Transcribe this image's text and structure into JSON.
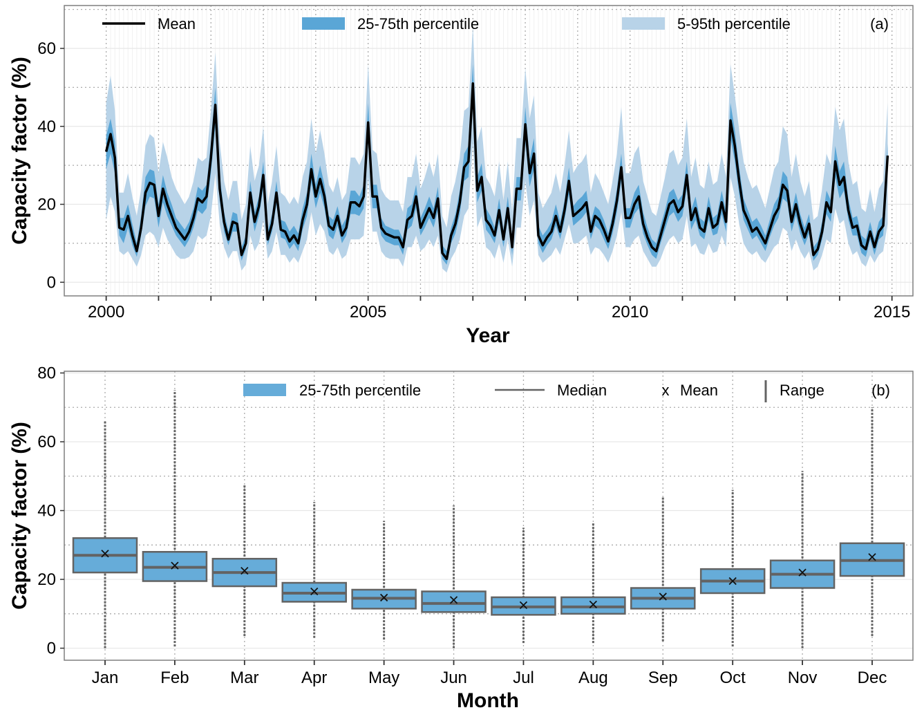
{
  "chart_data": [
    {
      "type": "line",
      "panel_label": "(a)",
      "xlabel": "Year",
      "ylabel": "Capacity factor (%)",
      "xlim": [
        1999.2,
        2015.4
      ],
      "ylim": [
        -3.5,
        71
      ],
      "x_ticks": [
        2000,
        2005,
        2010,
        2015
      ],
      "y_ticks": [
        0,
        20,
        40,
        60
      ],
      "grid": true,
      "legend_position": "top",
      "legend": {
        "mean": "Mean",
        "iqr": "25-75th percentile",
        "p5_95": "5-95th percentile"
      },
      "colors": {
        "mean": "#000000",
        "iqr": "#5aa6d6",
        "p5_95": "#b8d3e8"
      },
      "x_start": 2000.0,
      "x_step_months": 1,
      "series": [
        {
          "name": "Mean",
          "values": [
            33.5,
            38,
            32,
            14,
            13.5,
            17,
            12,
            8,
            14,
            23,
            25.5,
            25,
            17,
            24,
            20,
            17,
            14,
            12.5,
            11,
            13,
            16.5,
            21.5,
            20.5,
            22,
            32,
            45.5,
            24,
            15.5,
            11,
            15.5,
            15,
            7,
            10,
            23,
            15.5,
            19.5,
            27.5,
            11,
            15,
            23,
            13.5,
            13,
            10.5,
            12,
            10,
            16,
            20,
            29,
            22,
            26.5,
            22,
            14.5,
            13.5,
            17,
            12,
            14,
            20.5,
            20.5,
            19.5,
            22,
            41,
            22,
            22,
            14,
            12.5,
            12,
            11.5,
            11.5,
            9,
            16,
            17,
            22,
            14,
            16.5,
            19,
            16.5,
            21.5,
            7.5,
            6,
            12,
            15,
            20.5,
            29.5,
            31,
            51,
            23.5,
            27,
            16,
            14.5,
            12,
            18.5,
            11,
            19,
            9,
            24,
            24,
            40.5,
            28,
            33,
            12,
            9.5,
            11.5,
            13,
            17,
            13,
            18.5,
            26,
            17,
            18,
            19,
            20.5,
            13,
            17,
            16,
            13.5,
            10.5,
            15,
            21,
            29.5,
            16.5,
            16.5,
            20,
            22,
            15,
            11.5,
            9,
            8,
            12,
            16,
            20,
            21,
            18,
            19.5,
            27.5,
            16,
            19,
            14,
            13,
            19,
            14,
            15,
            20.5,
            15.5,
            41.5,
            35,
            26,
            18.5,
            16,
            13,
            14,
            12,
            10,
            13.5,
            17,
            19,
            25,
            23.5,
            15.5,
            20,
            15,
            11.5,
            15,
            7,
            8.5,
            13,
            20.5,
            18,
            31,
            25,
            27,
            18.5,
            14,
            14.5,
            9.5,
            8.5,
            13,
            9,
            13,
            14.5,
            32.5
          ]
        },
        {
          "name": "25-75th percentile",
          "low": [
            29,
            33,
            28,
            12,
            10,
            14,
            9.5,
            6.5,
            12,
            19.5,
            22,
            21.5,
            14,
            20.5,
            17,
            14.5,
            12,
            10.5,
            9,
            11,
            14,
            18.5,
            17.5,
            19,
            28,
            40,
            21,
            13,
            9.5,
            13,
            13,
            5.5,
            8.5,
            20,
            13,
            17,
            24,
            9.5,
            13,
            20,
            11.5,
            11,
            8.5,
            10,
            8,
            13.5,
            17,
            25.5,
            19,
            23,
            19,
            12,
            11,
            14.5,
            10,
            12,
            17.5,
            17.5,
            17,
            19,
            36,
            19,
            19,
            12,
            10.5,
            10,
            9.5,
            9.5,
            7,
            13.5,
            14.5,
            19,
            12,
            14,
            16.5,
            14,
            18.5,
            6,
            4.5,
            10,
            12.5,
            17.5,
            26,
            27,
            46,
            20.5,
            23.5,
            13.5,
            12,
            10,
            15.5,
            9,
            16,
            7,
            21,
            21,
            36,
            24.5,
            29,
            10,
            7.5,
            9.5,
            11,
            14.5,
            11,
            16,
            22.5,
            14.5,
            15.5,
            16.5,
            18,
            11,
            14.5,
            13.5,
            11,
            8.5,
            12.5,
            18,
            26,
            14,
            14,
            17.5,
            19,
            12.5,
            9.5,
            7,
            6,
            10,
            13.5,
            17,
            18,
            15.5,
            17,
            24,
            13.5,
            16,
            12,
            11,
            16,
            12,
            12.5,
            17.5,
            13,
            37,
            31,
            22.5,
            16,
            13.5,
            11,
            12,
            10,
            8,
            11.5,
            14.5,
            16.5,
            21.5,
            20.5,
            13,
            17,
            12.5,
            9.5,
            12.5,
            5.5,
            7,
            11,
            17.5,
            15.5,
            27,
            21.5,
            23.5,
            16,
            12,
            12,
            7.5,
            6.5,
            11,
            7,
            11,
            12,
            29
          ],
          "high": [
            37.5,
            42,
            36,
            16.5,
            16.5,
            20,
            15,
            10,
            17,
            27,
            29,
            28.5,
            20,
            27.5,
            23,
            20,
            16.5,
            15,
            13.5,
            15.5,
            19,
            24.5,
            23.5,
            25,
            36,
            50,
            27.5,
            18,
            13,
            18,
            17.5,
            9,
            12,
            26,
            18,
            22,
            31,
            13,
            17.5,
            26,
            16,
            15.5,
            13,
            14.5,
            12.5,
            19,
            23,
            33,
            25,
            30,
            25,
            17,
            16,
            19.5,
            14.5,
            16.5,
            23.5,
            23.5,
            22,
            25,
            46,
            25,
            25,
            16.5,
            14.5,
            14,
            13.5,
            13.5,
            11,
            19,
            20,
            25,
            16.5,
            19,
            22,
            19,
            24.5,
            9.5,
            8,
            14,
            17.5,
            23.5,
            33,
            35,
            56,
            27,
            30.5,
            19,
            17,
            14,
            21.5,
            13.5,
            22,
            11.5,
            27,
            27,
            45,
            31.5,
            37,
            14.5,
            12,
            13.5,
            15.5,
            20,
            15.5,
            21,
            29.5,
            19.5,
            21,
            22,
            23.5,
            15.5,
            19.5,
            18.5,
            16,
            12.5,
            17.5,
            24,
            33,
            19,
            19,
            23,
            25,
            18,
            14,
            11,
            10,
            14.5,
            18.5,
            23,
            24,
            21,
            22.5,
            31,
            18.5,
            22,
            16.5,
            15.5,
            22,
            16.5,
            17.5,
            23.5,
            18,
            46,
            39,
            29.5,
            21.5,
            18.5,
            15.5,
            16.5,
            14.5,
            12,
            16,
            20,
            22,
            28.5,
            27,
            18,
            23,
            17.5,
            14,
            17.5,
            9,
            10.5,
            15.5,
            23.5,
            21,
            35,
            28.5,
            31,
            21.5,
            16.5,
            17,
            12,
            11,
            15.5,
            11,
            15.5,
            17,
            35.5
          ]
        },
        {
          "name": "5-95th percentile",
          "low": [
            16,
            22,
            18,
            8,
            7,
            8,
            6,
            4,
            7,
            12,
            13,
            12,
            9,
            14,
            11,
            9,
            7,
            6,
            6,
            6.5,
            8,
            12,
            11,
            12,
            17,
            28,
            15,
            9,
            6,
            8,
            8,
            3,
            4.5,
            12,
            8,
            10,
            16,
            6,
            8,
            13,
            7,
            7,
            5,
            6.5,
            5,
            8,
            11,
            18,
            12,
            15,
            13,
            8,
            7,
            9,
            6,
            7,
            11,
            11,
            11,
            12,
            27,
            13,
            13,
            8,
            6.5,
            6,
            6,
            6,
            4,
            9,
            9,
            12,
            8,
            9,
            11,
            9,
            12,
            3.5,
            2.5,
            6,
            8,
            11,
            17,
            19,
            36,
            14,
            17,
            9,
            8,
            6,
            10,
            5,
            11,
            4,
            14,
            14,
            26,
            17,
            21,
            7,
            5,
            6,
            7,
            9,
            7,
            11,
            15,
            10,
            10,
            11,
            12,
            7,
            9,
            8.5,
            7,
            5,
            8,
            12,
            18,
            9,
            9,
            11,
            12,
            8,
            6,
            4,
            4,
            6,
            9,
            11,
            12,
            10,
            11,
            17,
            9,
            10,
            7.5,
            7,
            10,
            7.5,
            8,
            12,
            9,
            27,
            22,
            15,
            10,
            8,
            7,
            8,
            6,
            5,
            7,
            9,
            10,
            14,
            13,
            8,
            11,
            8,
            6,
            8,
            3,
            4,
            7,
            11,
            10,
            19,
            15,
            16,
            10,
            7,
            8,
            5,
            4,
            7,
            5,
            7,
            8,
            15
          ],
          "high": [
            46,
            53,
            44,
            23,
            23,
            28,
            22,
            17,
            24,
            35,
            38,
            37,
            28,
            36,
            32,
            27,
            24,
            22,
            20,
            22,
            26,
            32,
            31,
            32,
            44,
            59,
            36,
            26,
            21,
            26,
            26,
            16,
            20,
            35,
            26,
            30,
            40,
            20,
            26,
            35,
            23,
            22,
            20,
            22,
            20,
            27,
            31,
            42,
            33,
            39,
            33,
            25,
            23,
            27,
            21,
            23,
            32,
            32,
            30,
            33,
            56,
            34,
            33,
            24,
            22,
            21,
            21,
            21,
            18,
            27,
            27,
            33,
            24,
            27,
            31,
            27,
            33,
            17,
            14,
            22,
            26,
            32,
            44,
            45,
            66,
            36,
            40,
            27,
            25,
            22,
            31,
            21,
            31,
            18,
            37,
            37,
            55,
            42,
            48,
            23,
            19,
            21,
            23,
            28,
            23,
            30,
            39,
            28,
            30,
            31,
            33,
            23,
            28,
            26,
            23,
            20,
            26,
            33,
            45,
            28,
            28,
            33,
            35,
            26,
            22,
            18,
            17,
            22,
            27,
            33,
            34,
            30,
            32,
            42,
            27,
            32,
            25,
            24,
            31,
            25,
            26,
            33,
            27,
            56,
            48,
            39,
            31,
            27,
            24,
            25,
            22,
            19,
            24,
            29,
            31,
            40,
            38,
            27,
            33,
            26,
            22,
            26,
            16,
            17,
            24,
            33,
            30,
            45,
            39,
            42,
            31,
            25,
            26,
            19,
            18,
            24,
            18,
            24,
            26,
            46
          ]
        }
      ]
    },
    {
      "type": "box",
      "panel_label": "(b)",
      "xlabel": "Month",
      "ylabel": "Capacity factor (%)",
      "ylim": [
        -3.5,
        80.5
      ],
      "y_ticks": [
        0,
        20,
        40,
        60,
        80
      ],
      "grid": true,
      "legend_position": "top",
      "legend": {
        "iqr": "25-75th percentile",
        "median": "Median",
        "mean_marker": "x",
        "mean": "Mean",
        "range": "Range"
      },
      "colors": {
        "box_fill": "#66acd9",
        "box_stroke": "#636363",
        "range": "#636363"
      },
      "categories": [
        "Jan",
        "Feb",
        "Mar",
        "Apr",
        "May",
        "Jun",
        "Jul",
        "Aug",
        "Sep",
        "Oct",
        "Nov",
        "Dec"
      ],
      "series": [
        {
          "name": "Capacity factor",
          "min": [
            0,
            0.5,
            3.5,
            3,
            2.5,
            0,
            1.5,
            1.5,
            2,
            0.5,
            0,
            3.5
          ],
          "q1": [
            22,
            19.5,
            18,
            13.5,
            11.5,
            10.5,
            9.7,
            10,
            11.5,
            16,
            17.5,
            21
          ],
          "median": [
            27,
            23.5,
            22,
            16,
            14.5,
            13,
            12,
            12,
            14.5,
            19.5,
            21.5,
            25.5
          ],
          "q3": [
            32,
            28,
            26,
            19,
            17,
            16.5,
            14.8,
            14.8,
            17.5,
            23,
            25.5,
            30.5
          ],
          "max": [
            66,
            75,
            47.5,
            42.5,
            37,
            41.5,
            35,
            36.5,
            44,
            46,
            51.5,
            70
          ],
          "mean": [
            27.5,
            24,
            22.5,
            16.5,
            14.7,
            14,
            12.5,
            12.7,
            15,
            19.5,
            22,
            26.5
          ]
        }
      ]
    }
  ]
}
